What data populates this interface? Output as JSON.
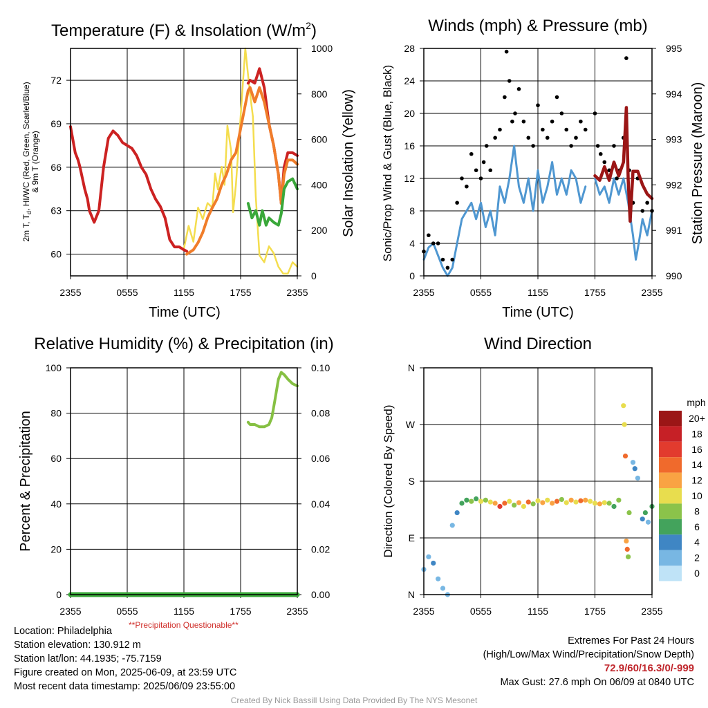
{
  "colors": {
    "temp_red": "#cc2222",
    "temp_orange": "#f07d2a",
    "temp_green": "#3aa83a",
    "insolation_yellow": "#f4dd4e",
    "wind_blue": "#4f97d1",
    "gust_black": "#000000",
    "pressure_maroon": "#9b1616",
    "rh_green": "#86c043",
    "precip_green": "#3aa83a",
    "questionable_red": "#d0312d"
  },
  "panels": {
    "temperature": {
      "title_main": "Temperature (F) & Insolation (W/m",
      "title_sup": "2",
      "title_end": ")",
      "ylabel_line1": "2m T, T",
      "ylabel_sub": "d",
      "ylabel_line1_end": ", HI/WC (Red, Green, Scarlet/Blue)",
      "ylabel_line2": "& 9m T (Orange)",
      "y2label": "Solar Insolation (Yellow)",
      "xlabel": "Time (UTC)"
    },
    "winds": {
      "title": "Winds (mph) & Pressure (mb)",
      "ylabel": "Sonic/Prop Wind & Gust (Blue, Black)",
      "y2label": "Station Pressure (Maroon)",
      "xlabel": "Time (UTC)"
    },
    "humidity": {
      "title": "Relative Humidity (%) & Precipitation (in)",
      "ylabel": "Percent & Precipitation",
      "questionable": "**Precipitation Questionable**"
    },
    "direction": {
      "title": "Wind Direction",
      "ylabel": "Direction (Colored By Speed)",
      "legend_title": "mph"
    }
  },
  "info_left": {
    "location": "Location: Philadelphia",
    "elevation": "Station elevation: 130.912 m",
    "latlon": "Station lat/lon: 44.1935; -75.7159",
    "created": "Figure created on Mon, 2025-06-09, at 23:59 UTC",
    "recent": "Most recent data timestamp: 2025/06/09 23:55:00"
  },
  "info_right": {
    "line1": "Extremes For Past 24 Hours",
    "line2": "(High/Low/Max Wind/Precipitation/Snow Depth)",
    "extremes": "72.9/60/16.3/0/-999",
    "gust": "Max Gust: 27.6 mph On 06/09 at 0840 UTC"
  },
  "credit": "Created By Nick Bassill Using Data Provided By The NYS Mesonet",
  "chart_data": [
    {
      "type": "line",
      "title": "Temperature (F) & Insolation (W/m2)",
      "xlabel": "Time (UTC)",
      "x_ticks": [
        "2355",
        "0555",
        "1155",
        "1755",
        "2355"
      ],
      "x_hours": [
        0,
        6,
        12,
        18,
        24
      ],
      "ylim": [
        58.5,
        74.2
      ],
      "y_ticks": [
        60,
        63,
        66,
        69,
        72
      ],
      "y2lim": [
        0,
        1000
      ],
      "y2_ticks": [
        0,
        200,
        400,
        600,
        800,
        1000
      ],
      "series": [
        {
          "name": "2m T",
          "color": "#cc2222",
          "x": [
            0,
            0.5,
            0.8,
            1,
            1.5,
            1.8,
            2,
            2.5,
            3,
            3.5,
            4,
            4.5,
            5,
            5.5,
            6,
            6.5,
            7,
            7.5,
            8,
            8.5,
            9,
            9.5,
            10,
            10.5,
            11,
            11.5,
            12,
            12.3,
            18.8,
            19,
            19.5,
            20,
            20.5,
            21,
            21.5,
            22,
            22.3,
            22.6,
            23,
            23.5,
            24
          ],
          "y": [
            68.8,
            67,
            66.5,
            66,
            64.5,
            63.8,
            63,
            62.2,
            63,
            66,
            68,
            68.5,
            68.2,
            67.7,
            67.5,
            67.3,
            66.8,
            66,
            65.5,
            64.5,
            63.8,
            63.3,
            62.5,
            61,
            60.5,
            60.5,
            60.3,
            60.2,
            71.8,
            72,
            71.8,
            72.8,
            71.5,
            69,
            67.5,
            65.5,
            63.5,
            66,
            67,
            67,
            66.8
          ]
        },
        {
          "name": "9m T",
          "color": "#f07d2a",
          "x": [
            12.3,
            13,
            13.5,
            14,
            14.5,
            15,
            15.5,
            16,
            16.5,
            17,
            17.5,
            18.8,
            19,
            19.5,
            20,
            20.5,
            21,
            21.5,
            22,
            22.3,
            22.6,
            23,
            23.5,
            24
          ],
          "y": [
            60,
            60.3,
            60.8,
            61.5,
            62.5,
            63.2,
            63.8,
            64.8,
            65.5,
            66.5,
            67,
            71.3,
            71.5,
            70.5,
            71.5,
            70.5,
            69,
            67.5,
            65.5,
            63.5,
            65.5,
            66.5,
            66.5,
            66.2
          ]
        },
        {
          "name": "HI/WC",
          "color": "#3aa83a",
          "x": [
            18.8,
            19.2,
            19.6,
            20,
            20.3,
            20.7,
            21,
            21.5,
            22,
            22.3,
            22.6,
            23,
            23.5,
            24
          ],
          "y": [
            63.5,
            62.5,
            63,
            62,
            63,
            62,
            62.5,
            62.2,
            62,
            62.8,
            64.5,
            65,
            65.2,
            64.5
          ]
        },
        {
          "name": "Solar Insolation",
          "axis": "y2",
          "color": "#f4dd4e",
          "x": [
            12,
            12.5,
            13,
            13.5,
            14,
            14.5,
            15,
            15.3,
            15.6,
            16,
            16.3,
            16.6,
            17,
            17.2,
            17.5,
            18.5,
            18.8,
            19,
            19.3,
            19.6,
            20,
            20.5,
            21,
            21.5,
            22,
            22.5,
            23,
            23.5,
            24
          ],
          "y": [
            120,
            220,
            150,
            300,
            250,
            320,
            300,
            450,
            380,
            480,
            400,
            660,
            550,
            280,
            400,
            1000,
            880,
            800,
            700,
            350,
            90,
            60,
            130,
            100,
            40,
            10,
            10,
            60,
            40
          ]
        }
      ]
    },
    {
      "type": "line",
      "title": "Winds (mph) & Pressure (mb)",
      "xlabel": "Time (UTC)",
      "x_ticks": [
        "2355",
        "0555",
        "1155",
        "1755",
        "2355"
      ],
      "x_hours": [
        0,
        6,
        12,
        18,
        24
      ],
      "ylim": [
        0,
        28
      ],
      "y_ticks": [
        0,
        4,
        8,
        12,
        16,
        20,
        24,
        28
      ],
      "y2lim": [
        990,
        995
      ],
      "y2_ticks": [
        990,
        991,
        992,
        993,
        994,
        995
      ],
      "series": [
        {
          "name": "Sonic/Prop Wind",
          "color": "#4f97d1",
          "x": [
            0,
            0.5,
            1,
            1.5,
            2,
            2.5,
            3,
            3.5,
            4,
            4.5,
            5,
            5.5,
            6,
            6.5,
            7,
            7.5,
            8,
            8.5,
            9,
            9.5,
            10,
            10.5,
            11,
            11.5,
            12,
            12.5,
            13,
            13.5,
            14,
            14.5,
            15,
            15.5,
            16,
            16.5,
            17,
            18,
            18.5,
            19,
            19.5,
            20,
            20.5,
            21,
            21.5,
            22,
            22.3,
            22.6,
            23,
            23.5,
            24
          ],
          "y": [
            2,
            3.5,
            4,
            2.5,
            1,
            0,
            1,
            4,
            7,
            8,
            9,
            7,
            9,
            6,
            8,
            5,
            11,
            9,
            12,
            16,
            11,
            9,
            12,
            8,
            13,
            9,
            11,
            14,
            10,
            12,
            10,
            13,
            12,
            9,
            11,
            12,
            10,
            11,
            9,
            12,
            10,
            12,
            9,
            5,
            2,
            4,
            7,
            5,
            8
          ]
        },
        {
          "name": "Gust",
          "color": "#000000",
          "style": "dots",
          "x": [
            0,
            0.5,
            1,
            1.5,
            2,
            2.5,
            3,
            3.5,
            4,
            4.5,
            5,
            5.5,
            6,
            6.3,
            6.6,
            7,
            7.5,
            8,
            8.5,
            8.7,
            9,
            9.3,
            9.6,
            10,
            10.5,
            11,
            11.5,
            12,
            12.5,
            13,
            13.5,
            14,
            14.5,
            15,
            15.5,
            16,
            16.5,
            17,
            18,
            18.3,
            18.6,
            19,
            19.5,
            20,
            20.3,
            20.6,
            21,
            21.3,
            21.6,
            22,
            22.5,
            23,
            23.5,
            24
          ],
          "y": [
            3,
            5,
            4,
            4,
            2,
            1,
            2,
            9,
            12,
            11,
            15,
            13,
            12,
            14,
            16,
            13,
            17,
            18,
            22,
            27.6,
            24,
            19,
            20,
            23,
            19,
            17,
            16,
            21,
            18,
            17,
            19,
            22,
            20,
            18,
            16,
            17,
            19,
            18,
            20,
            16,
            15,
            14,
            13,
            16,
            12,
            13,
            17,
            26.8,
            13,
            9,
            12,
            8,
            9,
            8
          ]
        },
        {
          "name": "Station Pressure",
          "axis": "y2",
          "color": "#9b1616",
          "x": [
            18,
            18.5,
            19,
            19.5,
            20,
            20.5,
            21,
            21.3,
            21.5,
            21.7,
            22,
            22.5,
            23,
            23.5,
            24
          ],
          "y": [
            992.2,
            992.1,
            992.4,
            992.1,
            992.5,
            992.2,
            992.5,
            993.7,
            992.1,
            991.2,
            992.3,
            992.3,
            992.0,
            991.8,
            991.7
          ]
        }
      ]
    },
    {
      "type": "line",
      "title": "Relative Humidity (%) & Precipitation (in)",
      "x_ticks": [
        "2355",
        "0555",
        "1155",
        "1755",
        "2355"
      ],
      "x_hours": [
        0,
        6,
        12,
        18,
        24
      ],
      "ylim": [
        0,
        100
      ],
      "y_ticks": [
        0,
        20,
        40,
        60,
        80,
        100
      ],
      "y2lim": [
        0,
        0.1
      ],
      "y2_ticks": [
        "0.00",
        "0.02",
        "0.04",
        "0.06",
        "0.08",
        "0.10"
      ],
      "series": [
        {
          "name": "Relative Humidity",
          "color": "#86c043",
          "x": [
            18.8,
            19,
            19.5,
            20,
            20.5,
            21,
            21.3,
            21.6,
            22,
            22.3,
            22.6,
            23,
            23.5,
            24
          ],
          "y": [
            76,
            75,
            75,
            74,
            74,
            75,
            78,
            85,
            95,
            98,
            97,
            95,
            93,
            92
          ]
        },
        {
          "name": "Precipitation",
          "color": "#3aa83a",
          "x": [
            0,
            24
          ],
          "y": [
            0,
            0
          ]
        }
      ]
    },
    {
      "type": "scatter",
      "title": "Wind Direction",
      "ylabel": "Direction (Colored By Speed)",
      "x_ticks": [
        "2355",
        "0555",
        "1155",
        "1755",
        "2355"
      ],
      "x_hours": [
        0,
        6,
        12,
        18,
        24
      ],
      "y_ticks": [
        "N",
        "E",
        "S",
        "W",
        "N"
      ],
      "y_degrees": [
        0,
        90,
        180,
        270,
        360
      ],
      "legend": {
        "title": "mph",
        "labels": [
          "20+",
          "18",
          "16",
          "14",
          "12",
          "10",
          "8",
          "6",
          "4",
          "2",
          "0"
        ],
        "colors": [
          "#9b1616",
          "#c62026",
          "#e23b2e",
          "#f06a2c",
          "#f9a343",
          "#e8dd4e",
          "#8bc34a",
          "#43a35c",
          "#3f86c4",
          "#78b7e3",
          "#bfe3f7"
        ]
      },
      "points": [
        {
          "x": 0,
          "y": 40,
          "s": 2
        },
        {
          "x": 0.5,
          "y": 60,
          "s": 2
        },
        {
          "x": 1,
          "y": 50,
          "s": 4
        },
        {
          "x": 1.5,
          "y": 25,
          "s": 2
        },
        {
          "x": 2,
          "y": 10,
          "s": 1
        },
        {
          "x": 2.5,
          "y": 0,
          "s": 1
        },
        {
          "x": 3,
          "y": 110,
          "s": 2
        },
        {
          "x": 3.5,
          "y": 130,
          "s": 4
        },
        {
          "x": 4,
          "y": 145,
          "s": 6
        },
        {
          "x": 4.5,
          "y": 150,
          "s": 6
        },
        {
          "x": 5,
          "y": 148,
          "s": 8
        },
        {
          "x": 5.5,
          "y": 152,
          "s": 6
        },
        {
          "x": 6,
          "y": 148,
          "s": 10
        },
        {
          "x": 6.5,
          "y": 150,
          "s": 8
        },
        {
          "x": 7,
          "y": 147,
          "s": 10
        },
        {
          "x": 7.5,
          "y": 145,
          "s": 12
        },
        {
          "x": 8,
          "y": 140,
          "s": 16
        },
        {
          "x": 8.5,
          "y": 145,
          "s": 14
        },
        {
          "x": 9,
          "y": 148,
          "s": 10
        },
        {
          "x": 9.5,
          "y": 142,
          "s": 8
        },
        {
          "x": 10,
          "y": 146,
          "s": 12
        },
        {
          "x": 10.5,
          "y": 140,
          "s": 10
        },
        {
          "x": 11,
          "y": 147,
          "s": 14
        },
        {
          "x": 11.5,
          "y": 144,
          "s": 8
        },
        {
          "x": 12,
          "y": 149,
          "s": 10
        },
        {
          "x": 12.5,
          "y": 146,
          "s": 12
        },
        {
          "x": 13,
          "y": 150,
          "s": 10
        },
        {
          "x": 13.5,
          "y": 145,
          "s": 12
        },
        {
          "x": 14,
          "y": 148,
          "s": 14
        },
        {
          "x": 14.5,
          "y": 151,
          "s": 8
        },
        {
          "x": 15,
          "y": 146,
          "s": 10
        },
        {
          "x": 15.5,
          "y": 150,
          "s": 12
        },
        {
          "x": 16,
          "y": 147,
          "s": 10
        },
        {
          "x": 16.5,
          "y": 149,
          "s": 14
        },
        {
          "x": 17,
          "y": 150,
          "s": 12
        },
        {
          "x": 17.5,
          "y": 148,
          "s": 10
        },
        {
          "x": 18,
          "y": 145,
          "s": 10
        },
        {
          "x": 18.5,
          "y": 144,
          "s": 12
        },
        {
          "x": 19,
          "y": 146,
          "s": 10
        },
        {
          "x": 19.5,
          "y": 145,
          "s": 8
        },
        {
          "x": 20,
          "y": 140,
          "s": 6
        },
        {
          "x": 20.5,
          "y": 150,
          "s": 8
        },
        {
          "x": 21,
          "y": 300,
          "s": 10
        },
        {
          "x": 21.1,
          "y": 270,
          "s": 10
        },
        {
          "x": 21.2,
          "y": 220,
          "s": 14
        },
        {
          "x": 21.3,
          "y": 85,
          "s": 12
        },
        {
          "x": 21.4,
          "y": 72,
          "s": 14
        },
        {
          "x": 21.5,
          "y": 60,
          "s": 8
        },
        {
          "x": 21.6,
          "y": 130,
          "s": 8
        },
        {
          "x": 22,
          "y": 210,
          "s": 2
        },
        {
          "x": 22.2,
          "y": 200,
          "s": 4
        },
        {
          "x": 22.5,
          "y": 185,
          "s": 2
        },
        {
          "x": 23,
          "y": 120,
          "s": 4
        },
        {
          "x": 23.3,
          "y": 130,
          "s": 6
        },
        {
          "x": 23.6,
          "y": 115,
          "s": 2
        },
        {
          "x": 24,
          "y": 140,
          "s": 6
        }
      ]
    }
  ]
}
